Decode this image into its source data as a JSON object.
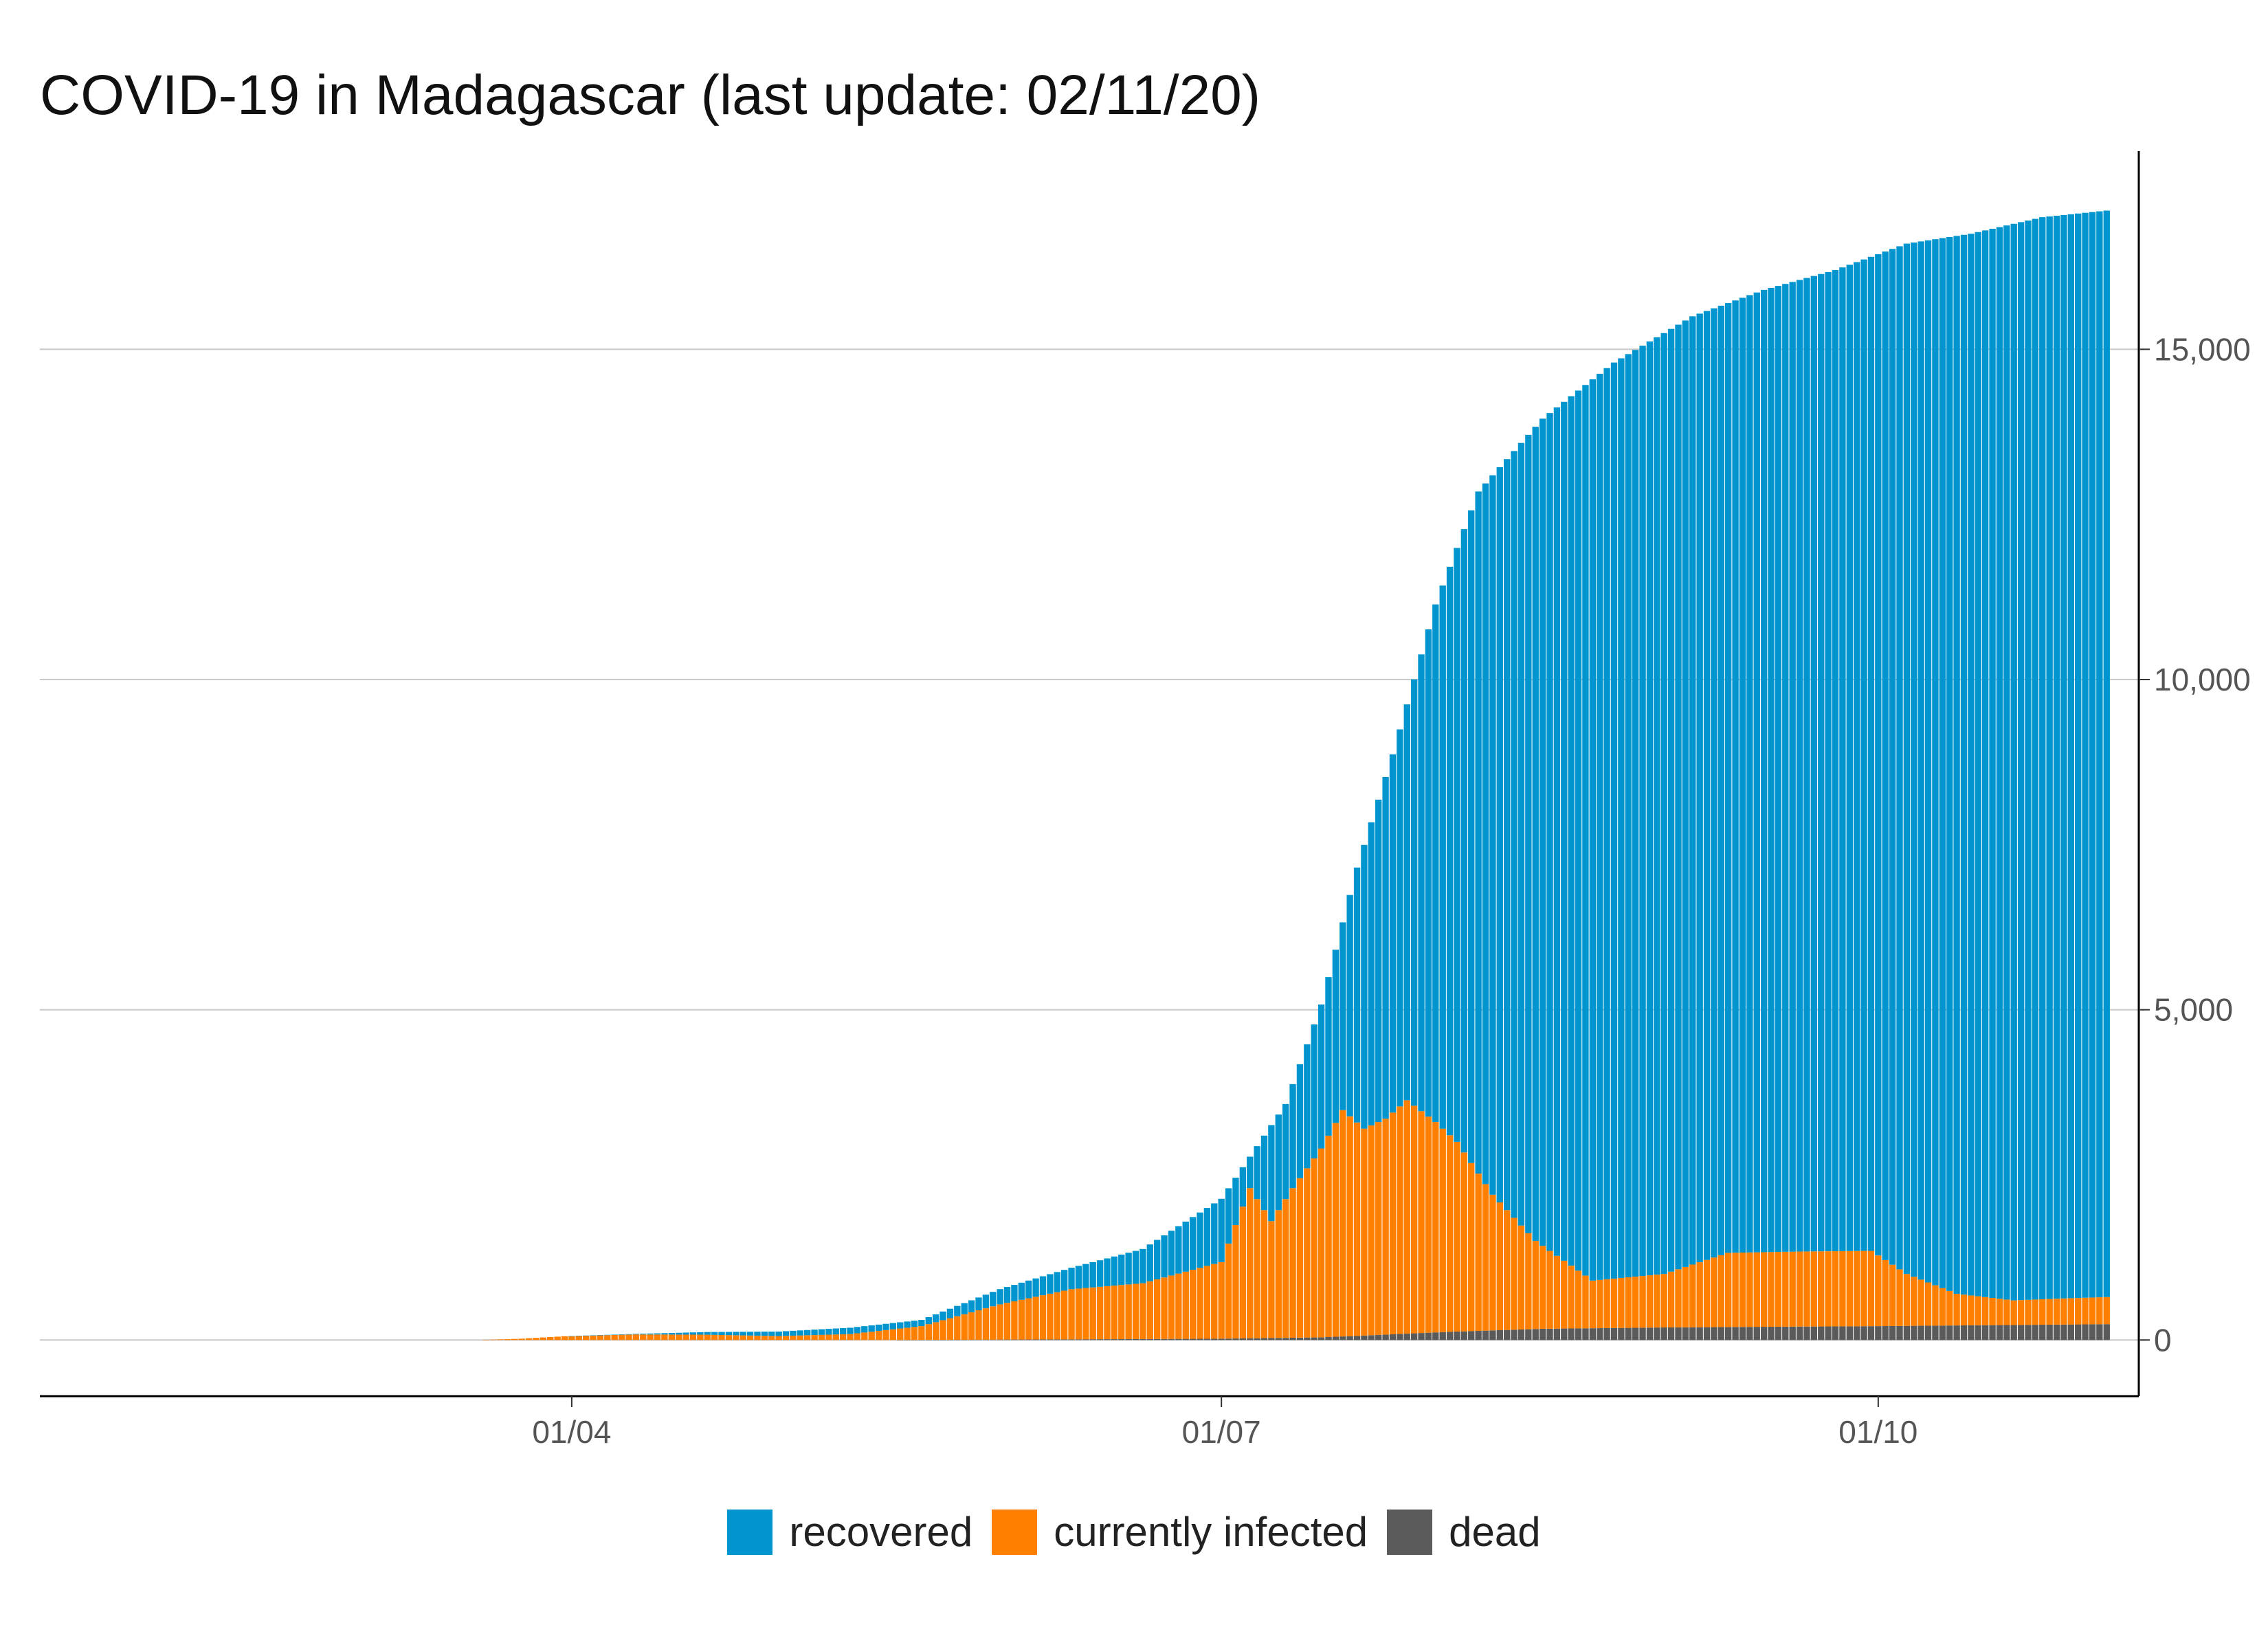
{
  "chart_data": {
    "type": "bar",
    "stacked": true,
    "title": "COVID-19 in Madagascar (last update: 02/11/20)",
    "xlabel": "",
    "ylabel": "",
    "x_range": [
      "2020-01-22",
      "2020-11-02"
    ],
    "ylim": [
      -850,
      18000
    ],
    "yticks": [
      0,
      5000,
      10000,
      15000
    ],
    "ytick_labels": [
      "0",
      "5,000",
      "10,000",
      "15,000"
    ],
    "xticks": [
      "2020-04-01",
      "2020-07-01",
      "2020-10-01"
    ],
    "xtick_labels": [
      "01/04",
      "01/07",
      "01/10"
    ],
    "y_axis_side": "right",
    "grid": "horizontal",
    "legend_position": "bottom",
    "colors": {
      "recovered": "#0095CE",
      "currently infected": "#FF7F00",
      "dead": "#5A5A5A"
    },
    "series_order": [
      "dead",
      "currently infected",
      "recovered"
    ],
    "total_keyframes": [
      [
        "2020-03-19",
        0
      ],
      [
        "2020-03-25",
        20
      ],
      [
        "2020-03-31",
        57
      ],
      [
        "2020-04-10",
        93
      ],
      [
        "2020-04-20",
        121
      ],
      [
        "2020-04-30",
        128
      ],
      [
        "2020-05-10",
        186
      ],
      [
        "2020-05-20",
        304
      ],
      [
        "2020-05-31",
        771
      ],
      [
        "2020-06-10",
        1094
      ],
      [
        "2020-06-20",
        1378
      ],
      [
        "2020-07-01",
        2138
      ],
      [
        "2020-07-10",
        3573
      ],
      [
        "2020-07-15",
        5080
      ],
      [
        "2020-07-20",
        7153
      ],
      [
        "2020-07-25",
        8867
      ],
      [
        "2020-07-31",
        11138
      ],
      [
        "2020-08-06",
        12847
      ],
      [
        "2020-08-15",
        13950
      ],
      [
        "2020-08-25",
        14800
      ],
      [
        "2020-09-05",
        15500
      ],
      [
        "2020-09-15",
        15900
      ],
      [
        "2020-09-25",
        16200
      ],
      [
        "2020-10-05",
        16600
      ],
      [
        "2020-10-14",
        16750
      ],
      [
        "2020-10-24",
        17000
      ],
      [
        "2020-11-02",
        17100
      ]
    ],
    "infected_keyframes": [
      [
        "2020-03-19",
        0
      ],
      [
        "2020-03-25",
        20
      ],
      [
        "2020-03-31",
        57
      ],
      [
        "2020-04-10",
        85
      ],
      [
        "2020-04-20",
        80
      ],
      [
        "2020-04-30",
        60
      ],
      [
        "2020-05-10",
        90
      ],
      [
        "2020-05-20",
        210
      ],
      [
        "2020-05-31",
        540
      ],
      [
        "2020-06-10",
        770
      ],
      [
        "2020-06-20",
        860
      ],
      [
        "2020-07-01",
        1180
      ],
      [
        "2020-07-05",
        2300
      ],
      [
        "2020-07-08",
        1800
      ],
      [
        "2020-07-11",
        2300
      ],
      [
        "2020-07-15",
        2900
      ],
      [
        "2020-07-18",
        3480
      ],
      [
        "2020-07-21",
        3200
      ],
      [
        "2020-07-24",
        3350
      ],
      [
        "2020-07-27",
        3630
      ],
      [
        "2020-07-31",
        3300
      ],
      [
        "2020-08-03",
        3000
      ],
      [
        "2020-08-08",
        2200
      ],
      [
        "2020-08-14",
        1500
      ],
      [
        "2020-08-22",
        900
      ],
      [
        "2020-09-01",
        1000
      ],
      [
        "2020-09-10",
        1320
      ],
      [
        "2020-09-20",
        1340
      ],
      [
        "2020-09-30",
        1350
      ],
      [
        "2020-10-05",
        1000
      ],
      [
        "2020-10-12",
        700
      ],
      [
        "2020-10-20",
        600
      ],
      [
        "2020-10-27",
        630
      ],
      [
        "2020-11-02",
        650
      ]
    ],
    "dead_keyframes": [
      [
        "2020-03-19",
        0
      ],
      [
        "2020-05-16",
        0
      ],
      [
        "2020-05-20",
        2
      ],
      [
        "2020-06-10",
        10
      ],
      [
        "2020-07-01",
        20
      ],
      [
        "2020-07-15",
        40
      ],
      [
        "2020-08-01",
        120
      ],
      [
        "2020-08-15",
        170
      ],
      [
        "2020-09-01",
        190
      ],
      [
        "2020-09-15",
        200
      ],
      [
        "2020-10-01",
        210
      ],
      [
        "2020-11-02",
        240
      ]
    ]
  },
  "legend": [
    {
      "label": "recovered",
      "color": "#0095CE"
    },
    {
      "label": "currently infected",
      "color": "#FF7F00"
    },
    {
      "label": "dead",
      "color": "#5A5A5A"
    }
  ]
}
